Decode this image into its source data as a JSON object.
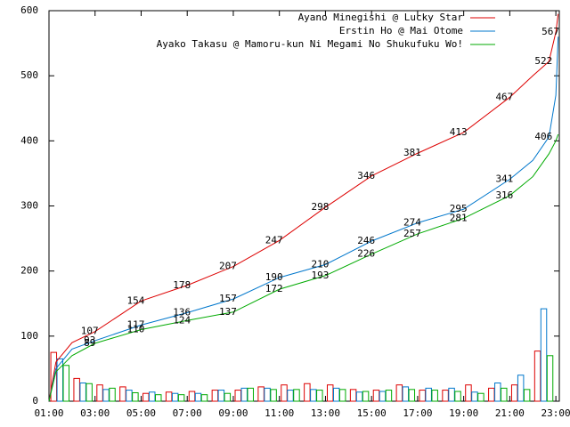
{
  "chart_data": {
    "type": "line",
    "xlim": [
      1,
      23.15
    ],
    "xticks": [
      {
        "value": 1,
        "label": "01:00"
      },
      {
        "value": 3,
        "label": "03:00"
      },
      {
        "value": 5,
        "label": "05:00"
      },
      {
        "value": 7,
        "label": "07:00"
      },
      {
        "value": 9,
        "label": "09:00"
      },
      {
        "value": 11,
        "label": "11:00"
      },
      {
        "value": 13,
        "label": "13:00"
      },
      {
        "value": 15,
        "label": "15:00"
      },
      {
        "value": 17,
        "label": "17:00"
      },
      {
        "value": 19,
        "label": "19:00"
      },
      {
        "value": 21,
        "label": "21:00"
      },
      {
        "value": 23,
        "label": "23:00"
      }
    ],
    "ylim": [
      0,
      600
    ],
    "yticks": [
      0,
      100,
      200,
      300,
      400,
      500,
      600
    ],
    "series": [
      {
        "name": "Ayano Minegishi @ Lucky Star",
        "color": "#dd0000",
        "x": [
          1,
          1.3,
          2,
          3,
          5,
          7,
          9,
          11,
          13,
          15,
          17,
          19,
          21,
          22,
          22.7,
          23,
          23.1
        ],
        "values": [
          0,
          60,
          90,
          107,
          154,
          178,
          207,
          247,
          298,
          346,
          381,
          413,
          467,
          500,
          522,
          567,
          595
        ],
        "value_labels": [
          null,
          null,
          null,
          "107",
          "154",
          "178",
          "207",
          "247",
          "298",
          "346",
          "381",
          "413",
          "467",
          null,
          "522",
          "567",
          null
        ],
        "hourly": [
          75,
          35,
          25,
          22,
          12,
          14,
          15,
          17,
          17,
          22,
          25,
          27,
          25,
          18,
          17,
          25,
          17,
          17,
          25,
          20,
          25,
          77
        ]
      },
      {
        "name": "Erstin Ho @ Mai Otome",
        "color": "#0077cc",
        "x": [
          1,
          1.3,
          2,
          3,
          5,
          7,
          9,
          11,
          13,
          15,
          17,
          19,
          21,
          22,
          22.7,
          23,
          23.1
        ],
        "values": [
          0,
          50,
          80,
          93,
          117,
          136,
          157,
          190,
          210,
          246,
          274,
          295,
          341,
          370,
          406,
          470,
          560
        ],
        "value_labels": [
          null,
          null,
          null,
          "93",
          "117",
          "136",
          "157",
          "190",
          "210",
          "246",
          "274",
          "295",
          "341",
          null,
          "406",
          null,
          null
        ],
        "hourly": [
          65,
          28,
          18,
          17,
          14,
          12,
          12,
          17,
          20,
          20,
          17,
          18,
          20,
          14,
          15,
          22,
          20,
          20,
          14,
          28,
          40,
          142
        ]
      },
      {
        "name": "Ayako Takasu @ Mamoru-kun Ni Megami No Shukufuku Wo!",
        "color": "#00aa00",
        "x": [
          1,
          1.3,
          2,
          3,
          5,
          7,
          9,
          11,
          13,
          15,
          17,
          19,
          21,
          22,
          22.7,
          23,
          23.1
        ],
        "values": [
          0,
          45,
          70,
          89,
          110,
          124,
          137,
          172,
          193,
          226,
          257,
          281,
          316,
          345,
          380,
          400,
          410
        ],
        "value_labels": [
          null,
          null,
          null,
          "89",
          "110",
          "124",
          "137",
          "172",
          "193",
          "226",
          "257",
          "281",
          "316",
          null,
          null,
          null,
          null
        ],
        "hourly": [
          55,
          27,
          20,
          13,
          10,
          10,
          10,
          12,
          20,
          18,
          18,
          17,
          18,
          15,
          17,
          18,
          17,
          15,
          12,
          20,
          18,
          70
        ]
      }
    ]
  }
}
